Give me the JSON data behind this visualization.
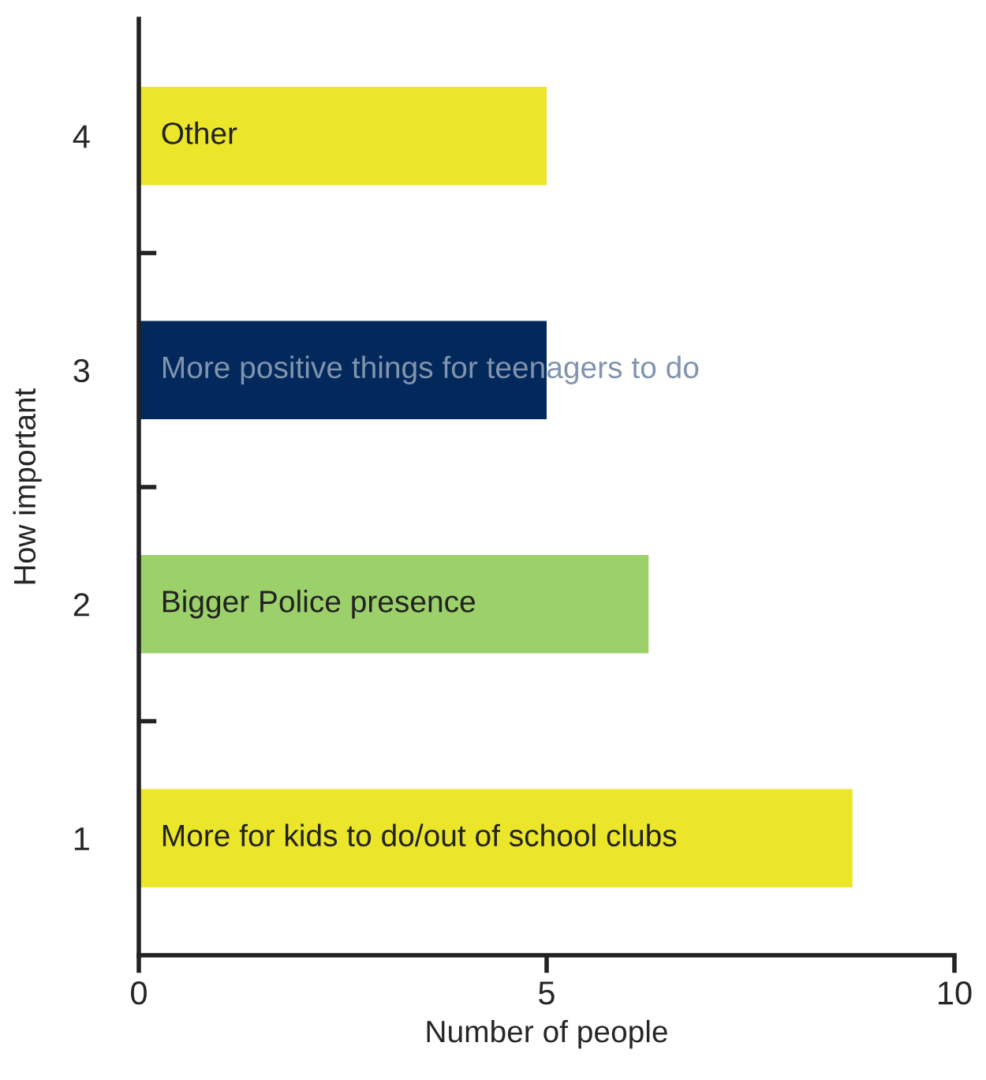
{
  "chart_data": {
    "type": "bar",
    "orientation": "horizontal",
    "xlabel": "Number of people",
    "ylabel": "How important",
    "categories": [
      "4",
      "3",
      "2",
      "1"
    ],
    "values": [
      5,
      5,
      6.25,
      8.75
    ],
    "colors": [
      "#ebe62a",
      "#03295c",
      "#9bd06a",
      "#ebe62a"
    ],
    "xlim": [
      0,
      10
    ],
    "xticks": [
      0,
      5,
      10
    ],
    "grid": false,
    "legend": false,
    "annotations": [
      "Other",
      "More positive things for teenagers to do",
      "Bigger Police presence",
      "More for kids to do/out of school clubs"
    ]
  }
}
